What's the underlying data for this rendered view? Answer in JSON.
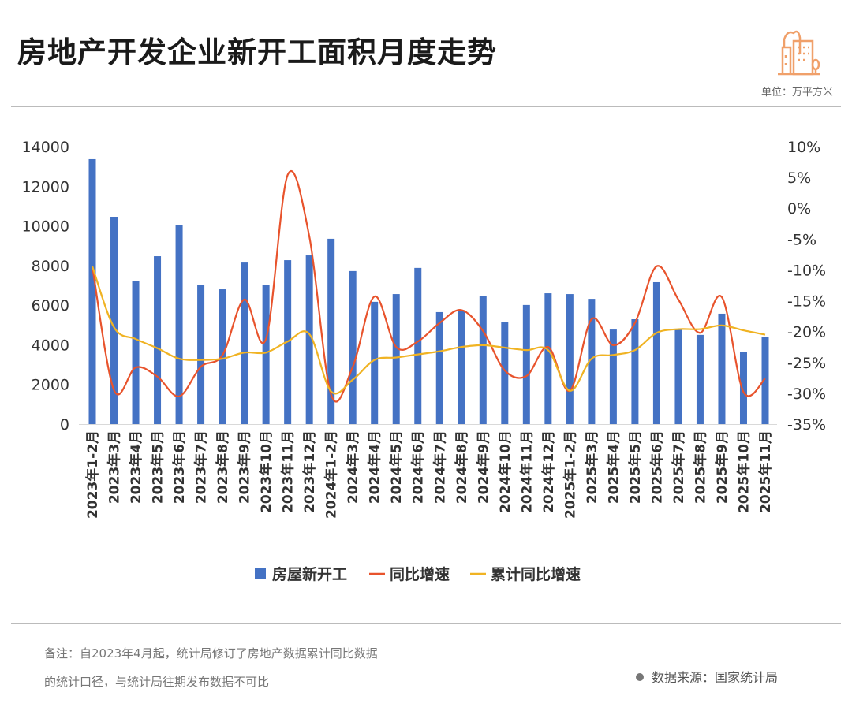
{
  "title": "房地产开发企业新开工面积月度走势",
  "unit": "单位：万平方米",
  "note_lines": [
    "备注：自2023年4月起，统计局修订了房地产数据累计同比数据",
    "的统计口径，与统计局往期发布数据不可比"
  ],
  "source": "数据来源：国家统计局",
  "colors": {
    "bar": "#4472C4",
    "yoy": "#E8532C",
    "cum": "#F0B323",
    "logo": "#F0A06A"
  },
  "chart_data": {
    "type": "bar+line",
    "title": "房地产开发企业新开工面积月度走势",
    "categories": [
      "2023年1-2月",
      "2023年3月",
      "2023年4月",
      "2023年5月",
      "2023年6月",
      "2023年7月",
      "2023年8月",
      "2023年9月",
      "2023年10月",
      "2023年11月",
      "2023年12月",
      "2024年1-2月",
      "2024年3月",
      "2024年4月",
      "2024年5月",
      "2024年6月",
      "2024年7月",
      "2024年8月",
      "2024年9月",
      "2024年10月",
      "2024年11月",
      "2024年12月",
      "2025年1-2月",
      "2025年3月",
      "2025年4月",
      "2025年5月",
      "2025年6月",
      "2025年7月",
      "2025年8月",
      "2025年9月",
      "2025年10月",
      "2025年11月"
    ],
    "series": [
      {
        "name": "房屋新开工",
        "type": "bar",
        "axis": "left",
        "values": [
          13365,
          10460,
          7200,
          8470,
          10060,
          7040,
          6800,
          8150,
          7000,
          8270,
          8510,
          9350,
          7720,
          6170,
          6560,
          7880,
          5650,
          5690,
          6480,
          5130,
          6010,
          6600,
          6560,
          6320,
          4770,
          5290,
          7160,
          4810,
          4500,
          5570,
          3620,
          4380
        ]
      },
      {
        "name": "同比增速",
        "type": "line",
        "axis": "right",
        "values": [
          -9.4,
          -29.5,
          -25.8,
          -27.3,
          -30.5,
          -25.7,
          -23.8,
          -14.8,
          -21.2,
          5.4,
          -4.6,
          -30.2,
          -25.7,
          -14.3,
          -22.5,
          -21.6,
          -18.6,
          -16.5,
          -19.9,
          -26.3,
          -27.2,
          -22.5,
          -29.6,
          -18.0,
          -22.2,
          -18.6,
          -9.4,
          -14.8,
          -20.2,
          -14.4,
          -29.8,
          -27.6
        ]
      },
      {
        "name": "累计同比增速",
        "type": "line",
        "axis": "right",
        "values": [
          -9.4,
          -19.3,
          -21.2,
          -22.7,
          -24.4,
          -24.6,
          -24.4,
          -23.4,
          -23.4,
          -21.6,
          -20.4,
          -29.7,
          -27.8,
          -24.6,
          -24.2,
          -23.7,
          -23.2,
          -22.5,
          -22.2,
          -22.6,
          -23.0,
          -23.0,
          -29.6,
          -24.4,
          -23.8,
          -23.0,
          -20.2,
          -19.6,
          -19.6,
          -19.0,
          -19.8,
          -20.5
        ]
      }
    ],
    "y_left": {
      "ticks": [
        "0",
        "2000",
        "4000",
        "6000",
        "8000",
        "10000",
        "12000",
        "14000"
      ],
      "range": [
        0,
        14000
      ]
    },
    "y_right": {
      "ticks": [
        "-35%",
        "-30%",
        "-25%",
        "-20%",
        "-15%",
        "-10%",
        "-5%",
        "0%",
        "5%",
        "10%"
      ],
      "range": [
        -35,
        10
      ]
    },
    "legend": [
      "房屋新开工",
      "同比增速",
      "累计同比增速"
    ],
    "legend_position": "bottom",
    "grid": false
  }
}
